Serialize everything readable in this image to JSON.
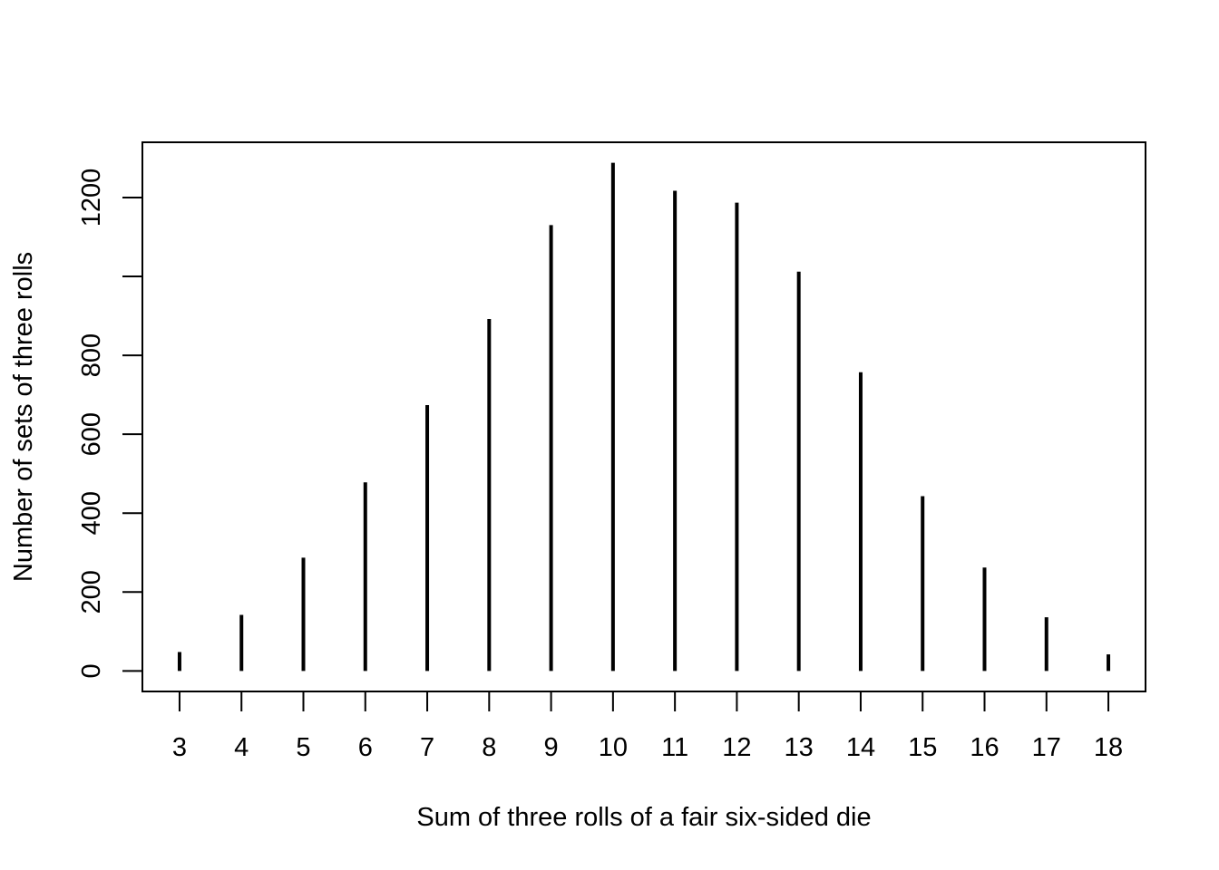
{
  "chart_data": {
    "type": "bar",
    "style": "vertical-spikes",
    "title": "",
    "xlabel": "Sum of three rolls of a fair six-sided die",
    "ylabel": "Number of sets of three rolls",
    "x": [
      3,
      4,
      5,
      6,
      7,
      8,
      9,
      10,
      11,
      12,
      13,
      14,
      15,
      16,
      17,
      18
    ],
    "x_tick_labels": [
      "3",
      "4",
      "5",
      "6",
      "7",
      "8",
      "9",
      "10",
      "11",
      "12",
      "13",
      "14",
      "15",
      "16",
      "17",
      "18"
    ],
    "values": [
      48,
      142,
      287,
      478,
      674,
      892,
      1130,
      1288,
      1217,
      1187,
      1012,
      757,
      443,
      262,
      136,
      42
    ],
    "y_ticks": [
      0,
      200,
      400,
      600,
      800,
      1000,
      1200
    ],
    "y_tick_labels": [
      "0",
      "200",
      "400",
      "600",
      "800",
      "",
      "1200"
    ],
    "xlim": [
      2.4,
      18.6
    ],
    "ylim": [
      -52,
      1340
    ],
    "grid": false,
    "legend": "none",
    "colors": {
      "spike": "#000000",
      "axis": "#000000",
      "background": "#ffffff"
    }
  }
}
